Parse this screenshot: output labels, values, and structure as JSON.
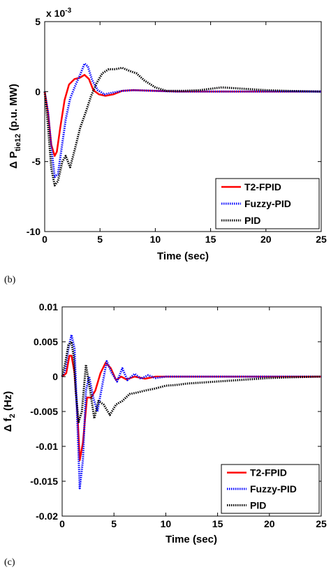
{
  "chart_data": [
    {
      "type": "line",
      "panel_label": "(b)",
      "xlabel": "Time (sec)",
      "ylabel_main": "Δ P",
      "ylabel_sub": "tie12",
      "ylabel_unit": " (p.u. MW)",
      "y_multiplier_base": "x 10",
      "y_multiplier_exp": "-3",
      "xlim": [
        0,
        25
      ],
      "ylim": [
        -10,
        5
      ],
      "xticks": [
        0,
        5,
        10,
        15,
        20,
        25
      ],
      "xtick_labels": [
        "0",
        "5",
        "10",
        "15",
        "20",
        "25"
      ],
      "yticks": [
        -10,
        -5,
        0,
        5
      ],
      "ytick_labels": [
        "-10",
        "-5",
        "0",
        "5"
      ],
      "legend_position": "bottom-right",
      "series": [
        {
          "name": "T2-FPID",
          "color": "#ff0000",
          "dash": "solid",
          "x": [
            0,
            0.3,
            0.6,
            0.9,
            1.1,
            1.4,
            1.8,
            2.2,
            2.7,
            3.2,
            3.6,
            4.0,
            4.4,
            4.9,
            5.5,
            6.2,
            7.0,
            8.0,
            10,
            12,
            15,
            20,
            25
          ],
          "y": [
            0,
            -1.5,
            -3.8,
            -4.6,
            -4.3,
            -2.6,
            -0.6,
            0.5,
            0.9,
            1.0,
            1.2,
            0.9,
            0.1,
            -0.2,
            -0.3,
            -0.2,
            0.05,
            0.1,
            0.05,
            0,
            0,
            0,
            0
          ]
        },
        {
          "name": "Fuzzy-PID",
          "color": "#0000ff",
          "dash": "dotted",
          "x": [
            0,
            0.3,
            0.6,
            0.9,
            1.2,
            1.5,
            1.9,
            2.3,
            2.8,
            3.2,
            3.6,
            3.9,
            4.3,
            4.8,
            5.4,
            6.0,
            7.0,
            8.0,
            10,
            12,
            15,
            20,
            25
          ],
          "y": [
            0,
            -1.5,
            -4.0,
            -6.1,
            -5.9,
            -4.2,
            -2.0,
            -0.5,
            0.5,
            1.2,
            2.0,
            1.8,
            0.8,
            0.1,
            -0.2,
            -0.1,
            0.05,
            0.1,
            0.05,
            0,
            0,
            0,
            0
          ]
        },
        {
          "name": "PID",
          "color": "#000000",
          "dash": "dotted",
          "x": [
            0,
            0.3,
            0.6,
            0.9,
            1.2,
            1.6,
            1.9,
            2.3,
            2.7,
            3.2,
            3.7,
            4.2,
            4.7,
            5.2,
            5.8,
            6.4,
            7.0,
            7.6,
            8.3,
            9.0,
            10.0,
            11.0,
            12.5,
            14,
            16,
            18,
            20,
            22,
            25
          ],
          "y": [
            0,
            -2.5,
            -5.5,
            -6.7,
            -6.4,
            -5.0,
            -4.6,
            -5.4,
            -4.2,
            -2.6,
            -1.5,
            -0.3,
            0.6,
            1.3,
            1.6,
            1.6,
            1.7,
            1.5,
            1.3,
            0.8,
            0.3,
            0.05,
            0.05,
            0.1,
            0.3,
            0.2,
            0.1,
            0.05,
            0
          ]
        }
      ]
    },
    {
      "type": "line",
      "panel_label": "(c)",
      "xlabel": "Time (sec)",
      "ylabel_main": "Δ f",
      "ylabel_sub": "2",
      "ylabel_unit": " (Hz)",
      "xlim": [
        0,
        25
      ],
      "ylim": [
        -0.02,
        0.01
      ],
      "xticks": [
        0,
        5,
        10,
        15,
        20,
        25
      ],
      "xtick_labels": [
        "0",
        "5",
        "10",
        "15",
        "20",
        "25"
      ],
      "yticks": [
        -0.02,
        -0.015,
        -0.01,
        -0.005,
        0,
        0.005,
        0.01
      ],
      "ytick_labels": [
        "-0.02",
        "-0.015",
        "-0.01",
        "-0.005",
        "0",
        "0.005",
        "0.01"
      ],
      "legend_position": "bottom-right",
      "series": [
        {
          "name": "T2-FPID",
          "color": "#ff0000",
          "dash": "solid",
          "x": [
            0,
            0.4,
            0.7,
            0.9,
            1.2,
            1.5,
            1.7,
            2.0,
            2.4,
            2.8,
            3.2,
            3.7,
            4.2,
            4.7,
            5.2,
            5.7,
            6.2,
            7.0,
            8.0,
            9.0,
            10,
            12,
            15,
            20,
            25
          ],
          "y": [
            0,
            0.0005,
            0.003,
            0.003,
            0.0005,
            -0.006,
            -0.012,
            -0.0095,
            -0.003,
            -0.003,
            -0.002,
            0.0005,
            0.002,
            0.0012,
            -0.0005,
            0,
            -0.0004,
            0,
            -0.0003,
            0,
            0,
            0,
            0,
            0,
            0
          ]
        },
        {
          "name": "Fuzzy-PID",
          "color": "#0000ff",
          "dash": "dotted",
          "x": [
            0,
            0.3,
            0.6,
            0.9,
            1.2,
            1.5,
            1.7,
            2.0,
            2.3,
            2.6,
            3.0,
            3.4,
            3.9,
            4.3,
            4.8,
            5.3,
            5.8,
            6.3,
            7.0,
            7.6,
            8.3,
            9.0,
            10,
            12,
            15,
            20,
            25
          ],
          "y": [
            0,
            0.001,
            0.004,
            0.006,
            0.004,
            -0.008,
            -0.016,
            -0.012,
            -0.002,
            0.0,
            -0.003,
            -0.005,
            -0.001,
            0.0022,
            0.0005,
            -0.0007,
            0.0012,
            -0.0005,
            0.0004,
            -0.0003,
            0.0002,
            -0.0002,
            0,
            0,
            0,
            0,
            0
          ]
        },
        {
          "name": "PID",
          "color": "#000000",
          "dash": "dotted",
          "x": [
            0,
            0.3,
            0.6,
            0.9,
            1.1,
            1.3,
            1.6,
            1.9,
            2.3,
            2.7,
            3.1,
            3.5,
            4.0,
            4.6,
            5.2,
            5.8,
            6.5,
            7.2,
            8.0,
            9.0,
            10,
            11,
            12,
            14,
            16,
            18,
            20,
            22,
            25
          ],
          "y": [
            0,
            0.002,
            0.0045,
            0.005,
            0.003,
            -0.002,
            -0.0065,
            -0.005,
            0.0017,
            -0.002,
            -0.006,
            -0.0035,
            -0.004,
            -0.0055,
            -0.004,
            -0.0035,
            -0.0025,
            -0.0023,
            -0.002,
            -0.0017,
            -0.0013,
            -0.0012,
            -0.001,
            -0.0008,
            -0.0006,
            -0.0004,
            -0.0002,
            -0.0001,
            0
          ]
        }
      ]
    }
  ]
}
